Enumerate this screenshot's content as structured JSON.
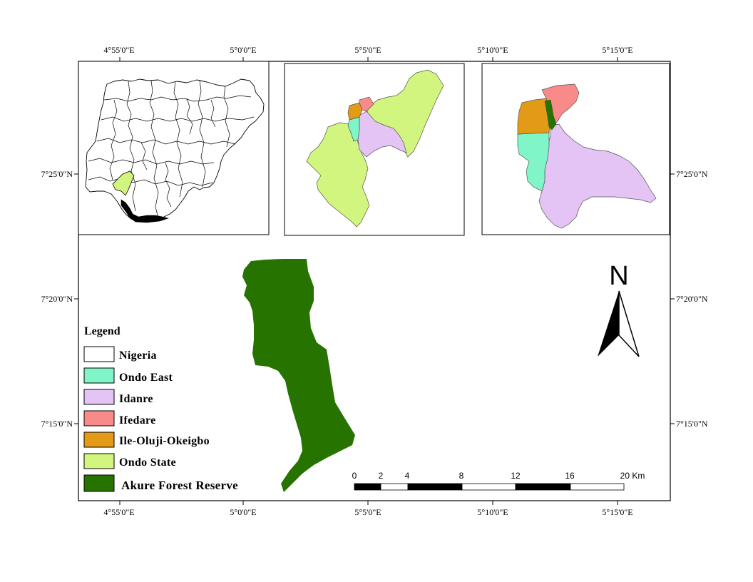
{
  "colors": {
    "nigeria": "#ffffff",
    "ondo_east": "#7ff5c8",
    "idanre": "#e4c3f5",
    "ifedare": "#f98a8a",
    "ile_oluji": "#e39a17",
    "ondo_state": "#d1f57e",
    "forest": "#267300"
  },
  "axes": {
    "top_ticks": [
      "4°55'0\"E",
      "5°0'0\"E",
      "5°5'0\"E",
      "5°10'0\"E",
      "5°15'0\"E"
    ],
    "bottom_ticks": [
      "4°55'0\"E",
      "5°0'0\"E",
      "5°5'0\"E",
      "5°10'0\"E",
      "5°15'0\"E"
    ],
    "left_ticks": [
      "7°25'0\"N",
      "7°20'0\"N",
      "7°15'0\"N"
    ],
    "right_ticks": [
      "7°25'0\"N",
      "7°20'0\"N",
      "7°15'0\"N"
    ]
  },
  "legend": {
    "title": "Legend",
    "items": [
      {
        "label": "Nigeria",
        "color_key": "nigeria"
      },
      {
        "label": "Ondo East",
        "color_key": "ondo_east"
      },
      {
        "label": "Idanre",
        "color_key": "idanre"
      },
      {
        "label": "Ifedare",
        "color_key": "ifedare"
      },
      {
        "label": "Ile-Oluji-Okeigbo",
        "color_key": "ile_oluji"
      },
      {
        "label": "Ondo State",
        "color_key": "ondo_state"
      },
      {
        "label": "Akure Forest Reserve",
        "color_key": "forest"
      }
    ]
  },
  "scale_bar": {
    "labels": [
      "0",
      "2",
      "4",
      "8",
      "12",
      "16",
      "20 Km"
    ]
  },
  "north_arrow": {
    "letter": "N",
    "icon": "north-arrow-icon"
  }
}
